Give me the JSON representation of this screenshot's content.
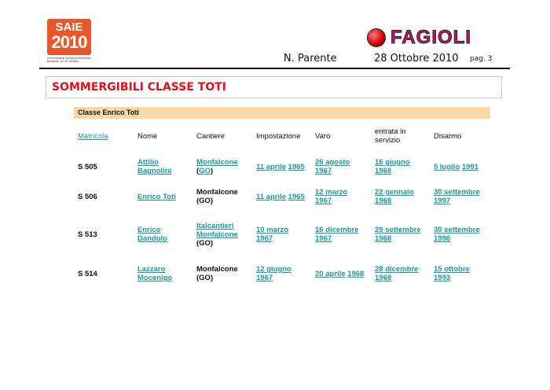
{
  "header": {
    "saie_logo": {
      "line1": "SAIE",
      "line2": "2010",
      "sub1": "International Building Exhibition",
      "sub2": "Bologna, 27-30 ottobre"
    },
    "fagioli_logo": "FAGIOLI",
    "author": "N. Parente",
    "date": "28 Ottobre 2010",
    "page": "pag. 3"
  },
  "title": "SOMMERGIBILI CLASSE TOTI",
  "section": "Classe Enrico Toti",
  "colors": {
    "title": "#e0101a",
    "link": "#1a9a9a",
    "band": "#fcd9a2"
  },
  "table": {
    "headers": [
      [
        [
          {
            "t": "Matricola",
            "l": true
          }
        ]
      ],
      [
        [
          {
            "t": "Nome",
            "l": false
          }
        ]
      ],
      [
        [
          {
            "t": "Cantiere",
            "l": false
          }
        ]
      ],
      [
        [
          {
            "t": "Impostazione",
            "l": false
          }
        ]
      ],
      [
        [
          {
            "t": "Varo",
            "l": false
          }
        ]
      ],
      [
        [
          {
            "t": "entrata in",
            "l": false
          }
        ],
        [
          {
            "t": "servizio",
            "l": false
          }
        ]
      ],
      [
        [
          {
            "t": "Disarmo",
            "l": false
          }
        ]
      ]
    ],
    "rows": [
      [
        [
          [
            {
              "t": "S 505",
              "l": false
            }
          ]
        ],
        [
          [
            {
              "t": "Attilio",
              "l": true
            }
          ],
          [
            {
              "t": "Bagnolini",
              "l": true
            }
          ]
        ],
        [
          [
            {
              "t": "Monfalcone",
              "l": true
            }
          ],
          [
            {
              "t": "(",
              "l": false
            },
            {
              "t": "GO",
              "l": true
            },
            {
              "t": ")",
              "l": false
            }
          ]
        ],
        [
          [
            {
              "t": "11 aprile",
              "l": true
            },
            {
              "t": " ",
              "l": false
            },
            {
              "t": "1965",
              "l": true
            }
          ]
        ],
        [
          [
            {
              "t": "26 agosto",
              "l": true
            }
          ],
          [
            {
              "t": "1967",
              "l": true
            }
          ]
        ],
        [
          [
            {
              "t": "16 giugno",
              "l": true
            }
          ],
          [
            {
              "t": "1968",
              "l": true
            }
          ]
        ],
        [
          [
            {
              "t": "5 luglio",
              "l": true
            },
            {
              "t": " ",
              "l": false
            },
            {
              "t": "1991",
              "l": true
            }
          ]
        ]
      ],
      [
        [
          [
            {
              "t": "S 506",
              "l": false
            }
          ]
        ],
        [
          [
            {
              "t": "Enrico Toti",
              "l": true
            }
          ]
        ],
        [
          [
            {
              "t": "Monfalcone",
              "l": false
            }
          ],
          [
            {
              "t": "(GO)",
              "l": false
            }
          ]
        ],
        [
          [
            {
              "t": "11 aprile",
              "l": true
            },
            {
              "t": " ",
              "l": false
            },
            {
              "t": "1965",
              "l": true
            }
          ]
        ],
        [
          [
            {
              "t": "12 marzo",
              "l": true
            }
          ],
          [
            {
              "t": "1967",
              "l": true
            }
          ]
        ],
        [
          [
            {
              "t": "22 gennaio",
              "l": true
            }
          ],
          [
            {
              "t": "1968",
              "l": true
            }
          ]
        ],
        [
          [
            {
              "t": "30 settembre",
              "l": true
            }
          ],
          [
            {
              "t": "1997",
              "l": true
            }
          ]
        ]
      ],
      [
        [
          [
            {
              "t": "S 513",
              "l": false
            }
          ]
        ],
        [
          [
            {
              "t": "Enrico",
              "l": true
            }
          ],
          [
            {
              "t": "Dandolo",
              "l": true
            }
          ]
        ],
        [
          [
            {
              "t": "Italcantieri",
              "l": true
            }
          ],
          [
            {
              "t": "Monfalcone",
              "l": true
            }
          ],
          [
            {
              "t": "(GO)",
              "l": false
            }
          ]
        ],
        [
          [
            {
              "t": "10 marzo",
              "l": true
            }
          ],
          [
            {
              "t": "1967",
              "l": true
            }
          ]
        ],
        [
          [
            {
              "t": "16 dicembre",
              "l": true
            }
          ],
          [
            {
              "t": "1967",
              "l": true
            }
          ]
        ],
        [
          [
            {
              "t": "29 settembre",
              "l": true
            }
          ],
          [
            {
              "t": "1968",
              "l": true
            }
          ]
        ],
        [
          [
            {
              "t": "30 settembre",
              "l": true
            }
          ],
          [
            {
              "t": "1996",
              "l": true
            }
          ]
        ]
      ],
      [
        [
          [
            {
              "t": "S 514",
              "l": false
            }
          ]
        ],
        [
          [
            {
              "t": "Lazzaro",
              "l": true
            }
          ],
          [
            {
              "t": "Mocenigo",
              "l": true
            }
          ]
        ],
        [
          [
            {
              "t": "Monfalcone",
              "l": false
            }
          ],
          [
            {
              "t": "(GO)",
              "l": false
            }
          ]
        ],
        [
          [
            {
              "t": "12 giugno",
              "l": true
            }
          ],
          [
            {
              "t": "1967",
              "l": true
            }
          ]
        ],
        [
          [
            {
              "t": "20 aprile",
              "l": true
            },
            {
              "t": " ",
              "l": false
            },
            {
              "t": "1968",
              "l": true
            }
          ]
        ],
        [
          [
            {
              "t": "28 dicembre",
              "l": true
            }
          ],
          [
            {
              "t": "1968",
              "l": true
            }
          ]
        ],
        [
          [
            {
              "t": "15 ottobre",
              "l": true
            }
          ],
          [
            {
              "t": "1993",
              "l": true
            }
          ]
        ]
      ]
    ]
  }
}
